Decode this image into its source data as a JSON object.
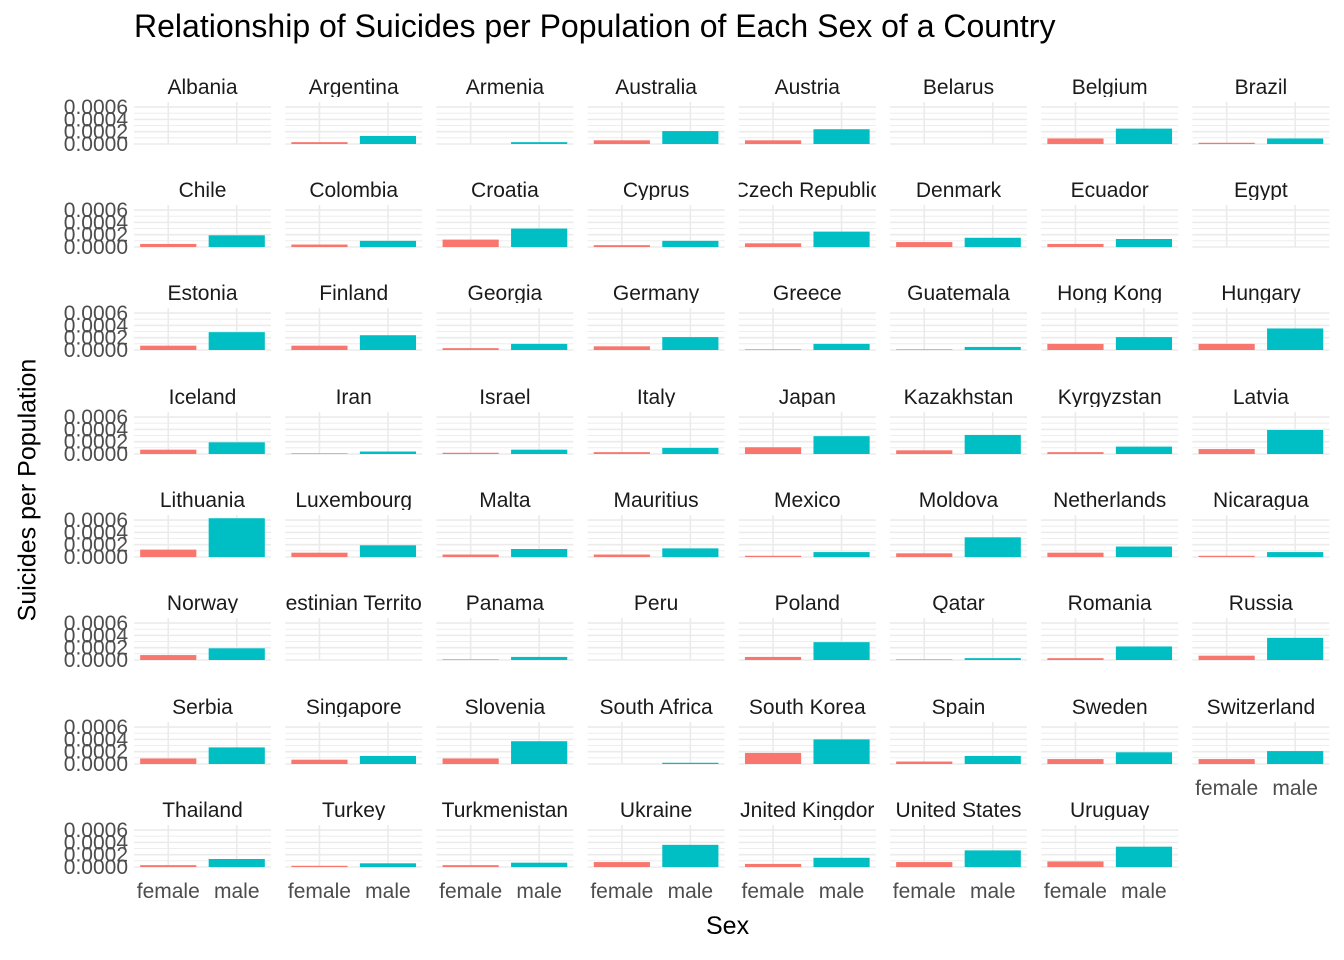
{
  "chart_data": {
    "type": "bar",
    "title": "Relationship of Suicides per Population of Each Sex of a Country",
    "xlabel": "Sex",
    "ylabel": "Suicides per Population",
    "categories": [
      "female",
      "male"
    ],
    "colors": {
      "female": "#F8766D",
      "male": "#00BFC4",
      "grid": "#EBEBEB",
      "axis_text": "#4D4D4D"
    },
    "ylim": [
      0,
      0.00065
    ],
    "yticks": [
      "0.0000",
      "0.0002",
      "0.0004",
      "0.0006"
    ],
    "ytick_values": [
      0,
      0.0002,
      0.0004,
      0.0006
    ],
    "grid": true,
    "legend": "none",
    "facet_ncol": 8,
    "facets": [
      {
        "country": "Albania",
        "female": 0.0,
        "male": 0.0
      },
      {
        "country": "Argentina",
        "female": 3e-05,
        "male": 0.00013
      },
      {
        "country": "Armenia",
        "female": 0.0,
        "male": 3e-05
      },
      {
        "country": "Australia",
        "female": 6e-05,
        "male": 0.00021
      },
      {
        "country": "Austria",
        "female": 6e-05,
        "male": 0.00024
      },
      {
        "country": "Belarus",
        "female": 0.0,
        "male": 0.0
      },
      {
        "country": "Belgium",
        "female": 9e-05,
        "male": 0.00025
      },
      {
        "country": "Brazil",
        "female": 2e-05,
        "male": 9e-05
      },
      {
        "country": "Chile",
        "female": 5e-05,
        "male": 0.00019
      },
      {
        "country": "Colombia",
        "female": 4e-05,
        "male": 0.0001
      },
      {
        "country": "Croatia",
        "female": 0.00012,
        "male": 0.0003
      },
      {
        "country": "Cyprus",
        "female": 3e-05,
        "male": 0.0001
      },
      {
        "country": "Czech Republic",
        "female": 6e-05,
        "male": 0.00025
      },
      {
        "country": "Denmark",
        "female": 8e-05,
        "male": 0.00015
      },
      {
        "country": "Ecuador",
        "female": 5e-05,
        "male": 0.00013
      },
      {
        "country": "Egypt",
        "female": 0.0,
        "male": 0.0
      },
      {
        "country": "Estonia",
        "female": 7e-05,
        "male": 0.00029
      },
      {
        "country": "Finland",
        "female": 7e-05,
        "male": 0.00024
      },
      {
        "country": "Georgia",
        "female": 3e-05,
        "male": 0.0001
      },
      {
        "country": "Germany",
        "female": 6e-05,
        "male": 0.00021
      },
      {
        "country": "Greece",
        "female": 1e-05,
        "male": 0.0001
      },
      {
        "country": "Guatemala",
        "female": 1e-05,
        "male": 5e-05
      },
      {
        "country": "Hong Kong",
        "female": 0.0001,
        "male": 0.00021
      },
      {
        "country": "Hungary",
        "female": 0.0001,
        "male": 0.00035
      },
      {
        "country": "Iceland",
        "female": 7e-05,
        "male": 0.00019
      },
      {
        "country": "Iran",
        "female": 1e-05,
        "male": 4e-05
      },
      {
        "country": "Israel",
        "female": 2e-05,
        "male": 7e-05
      },
      {
        "country": "Italy",
        "female": 3e-05,
        "male": 0.0001
      },
      {
        "country": "Japan",
        "female": 0.00011,
        "male": 0.00029
      },
      {
        "country": "Kazakhstan",
        "female": 6e-05,
        "male": 0.00031
      },
      {
        "country": "Kyrgyzstan",
        "female": 3e-05,
        "male": 0.00012
      },
      {
        "country": "Latvia",
        "female": 8e-05,
        "male": 0.00039
      },
      {
        "country": "Lithuania",
        "female": 0.00012,
        "male": 0.00063
      },
      {
        "country": "Luxembourg",
        "female": 7e-05,
        "male": 0.00019
      },
      {
        "country": "Malta",
        "female": 4e-05,
        "male": 0.00013
      },
      {
        "country": "Mauritius",
        "female": 4e-05,
        "male": 0.00014
      },
      {
        "country": "Mexico",
        "female": 2e-05,
        "male": 8e-05
      },
      {
        "country": "Moldova",
        "female": 6e-05,
        "male": 0.00032
      },
      {
        "country": "Netherlands",
        "female": 7e-05,
        "male": 0.00017
      },
      {
        "country": "Nicaragua",
        "female": 2e-05,
        "male": 8e-05
      },
      {
        "country": "Norway",
        "female": 8e-05,
        "male": 0.00019
      },
      {
        "country": "Occupied Palestinian Territory",
        "display": "estinian Territo",
        "female": 0.0,
        "male": 0.0
      },
      {
        "country": "Panama",
        "female": 1e-05,
        "male": 5e-05
      },
      {
        "country": "Peru",
        "female": 0.0,
        "male": 0.0
      },
      {
        "country": "Poland",
        "female": 5e-05,
        "male": 0.00029
      },
      {
        "country": "Qatar",
        "female": 1e-05,
        "male": 3e-05
      },
      {
        "country": "Romania",
        "female": 3e-05,
        "male": 0.00022
      },
      {
        "country": "Russia",
        "female": 7e-05,
        "male": 0.00036
      },
      {
        "country": "Serbia",
        "female": 9e-05,
        "male": 0.00027
      },
      {
        "country": "Singapore",
        "female": 7e-05,
        "male": 0.00013
      },
      {
        "country": "Slovenia",
        "female": 9e-05,
        "male": 0.00037
      },
      {
        "country": "South Africa",
        "female": 0.0,
        "male": 2e-05
      },
      {
        "country": "South Korea",
        "female": 0.00018,
        "male": 0.0004
      },
      {
        "country": "Spain",
        "female": 4e-05,
        "male": 0.00013
      },
      {
        "country": "Sweden",
        "female": 8e-05,
        "male": 0.00019
      },
      {
        "country": "Switzerland",
        "female": 8e-05,
        "male": 0.00021
      },
      {
        "country": "Thailand",
        "female": 3e-05,
        "male": 0.00013
      },
      {
        "country": "Turkey",
        "female": 2e-05,
        "male": 6e-05
      },
      {
        "country": "Turkmenistan",
        "female": 3e-05,
        "male": 7e-05
      },
      {
        "country": "Ukraine",
        "female": 8e-05,
        "male": 0.00036
      },
      {
        "country": "United Kingdom",
        "display": "Jnited Kingdor",
        "female": 5e-05,
        "male": 0.00015
      },
      {
        "country": "United States",
        "female": 8e-05,
        "male": 0.00027
      },
      {
        "country": "Uruguay",
        "female": 9e-05,
        "male": 0.00033
      }
    ]
  }
}
